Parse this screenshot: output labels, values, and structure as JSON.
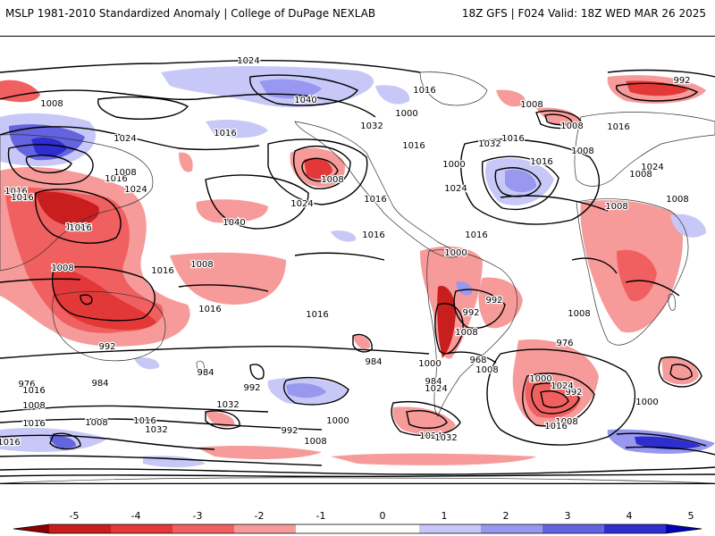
{
  "header": {
    "title": "MSLP 1981-2010 Standardized Anomaly | College of DuPage NEXLAB",
    "run_info": "18Z GFS | F024 Valid: 18Z WED MAR 26 2025"
  },
  "map": {
    "contour_labels": [
      "1024",
      "1040",
      "992",
      "1016",
      "1032",
      "1024",
      "1016",
      "1008",
      "1000",
      "1016",
      "1024",
      "1040",
      "1016",
      "1024",
      "1008",
      "1032",
      "1008",
      "1000",
      "1008",
      "1016",
      "1016",
      "1024",
      "1016",
      "1008",
      "1008",
      "1008",
      "1016",
      "1008",
      "1008",
      "1016",
      "1016",
      "1016",
      "1024",
      "1016",
      "1008",
      "1016",
      "1016",
      "1016",
      "1008",
      "1008",
      "1000",
      "992",
      "1016",
      "1008",
      "992",
      "1008",
      "992",
      "984",
      "1000",
      "976",
      "968",
      "1000",
      "984",
      "1008",
      "984",
      "1024",
      "992",
      "976",
      "1016",
      "1008",
      "984",
      "1032",
      "1016",
      "1000",
      "1008",
      "992",
      "1024",
      "1008",
      "1016",
      "1000",
      "992",
      "1008",
      "1024",
      "1032",
      "1016",
      "1016",
      "1032"
    ],
    "colors": {
      "neg5": "#8b0000",
      "neg4": "#c81e1e",
      "neg3": "#e84a4a",
      "neg2": "#f47878",
      "neg1": "#fbb4b4",
      "pos1": "#c8c8f8",
      "pos2": "#9898f0",
      "pos3": "#6464e0",
      "pos4": "#2e2ed0",
      "pos5": "#0000b4"
    }
  },
  "colorbar": {
    "labels": [
      "-5",
      "-4",
      "-3",
      "-2",
      "-1",
      "0",
      "1",
      "2",
      "3",
      "4",
      "5"
    ],
    "colors": [
      "#8b0000",
      "#c81e1e",
      "#e23838",
      "#f06060",
      "#f79a9a",
      "#ffffff",
      "#ffffff",
      "#c8c8f8",
      "#9898f0",
      "#6464e0",
      "#2e2ed0",
      "#0000b4"
    ]
  }
}
